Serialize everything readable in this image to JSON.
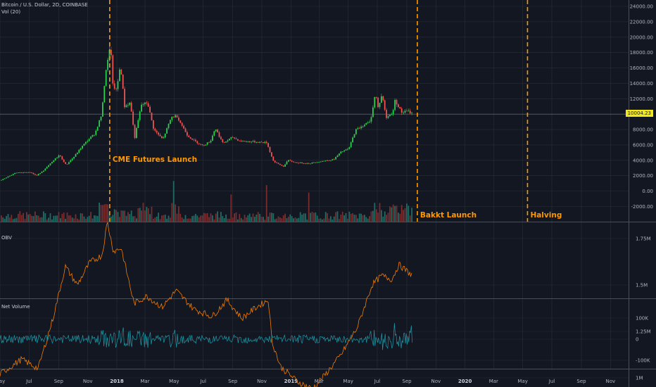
{
  "legend": {
    "symbol": "Bitcoin / U.S. Dollar, 2D, COINBASE",
    "volume": "Vol (20)",
    "obv": "OBV",
    "net_volume": "Net Volume"
  },
  "colors": {
    "background": "#131722",
    "grid": "#2a2e39",
    "axis_text": "#b2b5be",
    "up": "#26a69a",
    "up_bright": "#28d14c",
    "down": "#ef5350",
    "volume_up": "#1f6b63",
    "volume_down": "#7b2c2c",
    "obv_line": "#f57c00",
    "net_volume_line": "#1c9aa8",
    "event_line": "#ff9800",
    "last_price_bg": "#f2e71d",
    "pane_separator": "#4a4e58"
  },
  "price_axis_labels": [
    "24000.00",
    "22000.00",
    "20000.00",
    "18000.00",
    "16000.00",
    "14000.00",
    "12000.00",
    "10000.00",
    "8000.00",
    "6000.00",
    "4000.00",
    "2000.00",
    "0.00",
    "-2000.00"
  ],
  "obv_axis_labels": [
    "1.75M",
    "1.5M",
    "1.25M",
    "1M"
  ],
  "net_volume_axis_labels": [
    "100K",
    "0",
    "-100K"
  ],
  "last_price": "10004.23",
  "x_axis_labels": [
    "May",
    "Jul",
    "Sep",
    "Nov",
    "2018",
    "Mar",
    "May",
    "Jul",
    "Sep",
    "Nov",
    "2019",
    "Mar",
    "May",
    "Jul",
    "Sep",
    "Nov",
    "2020",
    "Mar",
    "May",
    "Jul",
    "Sep",
    "Nov"
  ],
  "annotations": [
    {
      "label": "CME Futures Launch",
      "date": "2017-12-17"
    },
    {
      "label": "Bakkt Launch",
      "date": "2019-09-23"
    },
    {
      "label": "Halving",
      "date": "2020-05-11"
    }
  ],
  "chart_data": [
    {
      "type": "candlestick",
      "title": "Bitcoin / U.S. Dollar, 2D, COINBASE",
      "x_range": [
        "2017-05-01",
        "2020-11-30"
      ],
      "ylim": [
        -3000,
        25000
      ],
      "last_price": 10004.23,
      "close_trajectory": [
        [
          "2017-05-01",
          1400
        ],
        [
          "2017-06-01",
          2350
        ],
        [
          "2017-07-01",
          2500
        ],
        [
          "2017-07-15",
          2000
        ],
        [
          "2017-08-01",
          2800
        ],
        [
          "2017-09-01",
          4700
        ],
        [
          "2017-09-15",
          3400
        ],
        [
          "2017-10-01",
          4400
        ],
        [
          "2017-10-20",
          5900
        ],
        [
          "2017-11-01",
          6700
        ],
        [
          "2017-11-15",
          7500
        ],
        [
          "2017-11-29",
          10000
        ],
        [
          "2017-12-07",
          15500
        ],
        [
          "2017-12-12",
          17000
        ],
        [
          "2017-12-17",
          19400
        ],
        [
          "2017-12-22",
          13800
        ],
        [
          "2017-12-30",
          13000
        ],
        [
          "2018-01-07",
          16500
        ],
        [
          "2018-01-16",
          11000
        ],
        [
          "2018-01-28",
          11500
        ],
        [
          "2018-02-06",
          6900
        ],
        [
          "2018-02-20",
          11200
        ],
        [
          "2018-03-05",
          11500
        ],
        [
          "2018-03-18",
          8000
        ],
        [
          "2018-04-06",
          6700
        ],
        [
          "2018-04-24",
          9600
        ],
        [
          "2018-05-05",
          9800
        ],
        [
          "2018-05-28",
          7200
        ],
        [
          "2018-06-12",
          6500
        ],
        [
          "2018-06-29",
          5900
        ],
        [
          "2018-07-15",
          6500
        ],
        [
          "2018-07-25",
          8200
        ],
        [
          "2018-08-10",
          6200
        ],
        [
          "2018-08-30",
          7000
        ],
        [
          "2018-09-15",
          6500
        ],
        [
          "2018-10-15",
          6400
        ],
        [
          "2018-11-10",
          6300
        ],
        [
          "2018-11-20",
          4500
        ],
        [
          "2018-11-25",
          3800
        ],
        [
          "2018-12-15",
          3200
        ],
        [
          "2018-12-24",
          4000
        ],
        [
          "2019-01-10",
          3700
        ],
        [
          "2019-02-08",
          3600
        ],
        [
          "2019-03-01",
          3850
        ],
        [
          "2019-03-30",
          4100
        ],
        [
          "2019-04-15",
          5100
        ],
        [
          "2019-05-01",
          5500
        ],
        [
          "2019-05-15",
          7900
        ],
        [
          "2019-06-01",
          8600
        ],
        [
          "2019-06-15",
          9000
        ],
        [
          "2019-06-26",
          12800
        ],
        [
          "2019-07-01",
          10800
        ],
        [
          "2019-07-10",
          12600
        ],
        [
          "2019-07-18",
          9500
        ],
        [
          "2019-08-01",
          10200
        ],
        [
          "2019-08-06",
          11800
        ],
        [
          "2019-08-20",
          10200
        ],
        [
          "2019-09-01",
          10400
        ],
        [
          "2019-09-13",
          10004
        ]
      ]
    },
    {
      "type": "bar",
      "title": "Vol (20)",
      "note": "volume bars along bottom of price pane"
    },
    {
      "type": "line",
      "title": "OBV",
      "ylim": [
        0.85,
        1.85
      ],
      "unit": "M",
      "points": [
        [
          "2017-05-01",
          1.02
        ],
        [
          "2017-06-15",
          1.1
        ],
        [
          "2017-07-20",
          1.05
        ],
        [
          "2017-08-20",
          1.32
        ],
        [
          "2017-09-15",
          1.6
        ],
        [
          "2017-10-10",
          1.5
        ],
        [
          "2017-11-05",
          1.62
        ],
        [
          "2017-12-01",
          1.66
        ],
        [
          "2017-12-12",
          1.84
        ],
        [
          "2017-12-25",
          1.68
        ],
        [
          "2018-01-10",
          1.7
        ],
        [
          "2018-02-06",
          1.4
        ],
        [
          "2018-03-05",
          1.44
        ],
        [
          "2018-04-06",
          1.38
        ],
        [
          "2018-05-05",
          1.47
        ],
        [
          "2018-06-12",
          1.37
        ],
        [
          "2018-07-20",
          1.33
        ],
        [
          "2018-08-20",
          1.42
        ],
        [
          "2018-09-20",
          1.32
        ],
        [
          "2018-10-20",
          1.38
        ],
        [
          "2018-11-15",
          1.42
        ],
        [
          "2018-11-22",
          1.2
        ],
        [
          "2018-12-10",
          1.06
        ],
        [
          "2019-01-15",
          0.98
        ],
        [
          "2019-02-15",
          0.94
        ],
        [
          "2019-03-15",
          1.02
        ],
        [
          "2019-04-15",
          1.12
        ],
        [
          "2019-05-20",
          1.27
        ],
        [
          "2019-06-20",
          1.5
        ],
        [
          "2019-07-10",
          1.55
        ],
        [
          "2019-08-01",
          1.53
        ],
        [
          "2019-08-15",
          1.61
        ],
        [
          "2019-09-13",
          1.55
        ]
      ]
    },
    {
      "type": "line",
      "title": "Net Volume",
      "ylim": [
        -130,
        130
      ],
      "unit": "K",
      "note": "oscillating series around zero, spikes near 2017-12 and 2018-11"
    }
  ]
}
